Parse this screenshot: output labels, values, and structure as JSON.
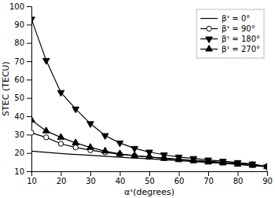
{
  "chart_data": {
    "type": "line",
    "xlabel": "αˢ(degrees)",
    "ylabel": "STEC (TECU)",
    "xlim": [
      10,
      90
    ],
    "ylim": [
      10,
      100
    ],
    "xticks": [
      10,
      20,
      30,
      40,
      50,
      60,
      70,
      80,
      90
    ],
    "yticks": [
      10,
      20,
      30,
      40,
      50,
      60,
      70,
      80,
      90,
      100
    ],
    "grid": false,
    "legend": "upper right",
    "x": [
      10,
      15,
      20,
      25,
      30,
      35,
      40,
      45,
      50,
      55,
      60,
      65,
      70,
      75,
      80,
      85,
      90
    ],
    "series": [
      {
        "name": "βˢ = 0°",
        "color": "#000000",
        "marker": "none",
        "values": [
          21.0,
          20.3,
          19.7,
          19.2,
          18.7,
          18.2,
          17.7,
          17.2,
          16.8,
          16.3,
          15.8,
          15.3,
          14.8,
          14.3,
          13.8,
          13.2,
          12.5
        ]
      },
      {
        "name": "βˢ = 90°",
        "color": "#000000",
        "marker": "open-circle",
        "values": [
          31.0,
          28.5,
          25.0,
          23.0,
          21.5,
          20.3,
          19.3,
          18.5,
          17.8,
          17.2,
          16.6,
          16.0,
          15.5,
          14.9,
          14.3,
          13.7,
          12.5
        ]
      },
      {
        "name": "βˢ = 180°",
        "color": "#000000",
        "marker": "triangle-down",
        "values": [
          93.0,
          70.5,
          53.0,
          44.0,
          36.0,
          29.5,
          25.5,
          22.5,
          20.5,
          19.0,
          17.8,
          17.0,
          16.2,
          15.5,
          14.8,
          14.0,
          12.5
        ]
      },
      {
        "name": "βˢ = 270°",
        "color": "#000000",
        "marker": "triangle-up",
        "values": [
          38.0,
          32.0,
          28.5,
          25.5,
          23.0,
          21.0,
          19.5,
          18.5,
          17.8,
          17.0,
          16.3,
          15.7,
          15.0,
          14.5,
          13.8,
          13.2,
          12.5
        ]
      }
    ]
  }
}
